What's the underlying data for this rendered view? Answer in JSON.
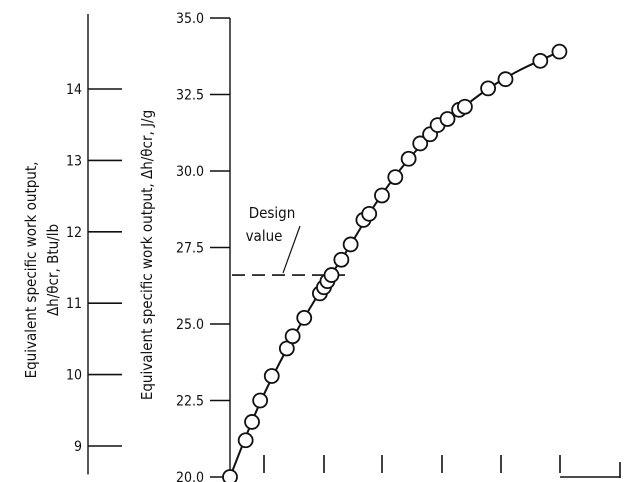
{
  "chart_data": {
    "type": "scatter",
    "x_axis": {
      "label": "",
      "tick_labels": [
        "",
        "",
        "",
        "",
        "",
        ""
      ]
    },
    "y_axis_si": {
      "label": "Equivalent specific work output, Δh/θcr, J/g",
      "ylim": [
        20.0,
        35.0
      ],
      "ticks": [
        20.0,
        22.5,
        25.0,
        27.5,
        30.0,
        32.5,
        35.0
      ],
      "tick_labels": [
        "20.0",
        "22.5",
        "25.0",
        "27.5",
        "30.0",
        "32.5",
        "35.0"
      ]
    },
    "y_axis_english": {
      "label_line1": "Equivalent specific work output,",
      "label_line2": "Δh/θcr,  Btu/lb",
      "ylim": [
        8.6,
        15.05
      ],
      "ticks": [
        9,
        10,
        11,
        12,
        13,
        14
      ],
      "tick_labels": [
        "9",
        "10",
        "11",
        "12",
        "13",
        "14"
      ]
    },
    "design_value": {
      "label_line1": "Design",
      "label_line2": "value",
      "y": 26.6
    },
    "series": [
      {
        "points": [
          {
            "x": 0.0,
            "y": 20.0
          },
          {
            "x": 0.27,
            "y": 21.2
          },
          {
            "x": 0.38,
            "y": 21.8
          },
          {
            "x": 0.52,
            "y": 22.5
          },
          {
            "x": 0.72,
            "y": 23.3
          },
          {
            "x": 0.98,
            "y": 24.2
          },
          {
            "x": 1.08,
            "y": 24.6
          },
          {
            "x": 1.28,
            "y": 25.2
          },
          {
            "x": 1.55,
            "y": 26.0
          },
          {
            "x": 1.62,
            "y": 26.2
          },
          {
            "x": 1.68,
            "y": 26.4
          },
          {
            "x": 1.75,
            "y": 26.6
          },
          {
            "x": 1.92,
            "y": 27.1
          },
          {
            "x": 2.08,
            "y": 27.6
          },
          {
            "x": 2.3,
            "y": 28.4
          },
          {
            "x": 2.4,
            "y": 28.6
          },
          {
            "x": 2.62,
            "y": 29.2
          },
          {
            "x": 2.85,
            "y": 29.8
          },
          {
            "x": 3.08,
            "y": 30.4
          },
          {
            "x": 3.28,
            "y": 30.9
          },
          {
            "x": 3.45,
            "y": 31.2
          },
          {
            "x": 3.58,
            "y": 31.5
          },
          {
            "x": 3.75,
            "y": 31.7
          },
          {
            "x": 3.95,
            "y": 32.0
          },
          {
            "x": 4.05,
            "y": 32.1
          },
          {
            "x": 4.45,
            "y": 32.7
          },
          {
            "x": 4.75,
            "y": 33.0
          },
          {
            "x": 5.35,
            "y": 33.6
          },
          {
            "x": 5.68,
            "y": 33.9
          }
        ],
        "curve": [
          {
            "x": 0.0,
            "y": 20.0
          },
          {
            "x": 0.5,
            "y": 22.35
          },
          {
            "x": 1.0,
            "y": 24.25
          },
          {
            "x": 1.5,
            "y": 25.9
          },
          {
            "x": 2.0,
            "y": 27.35
          },
          {
            "x": 2.5,
            "y": 28.9
          },
          {
            "x": 3.0,
            "y": 30.2
          },
          {
            "x": 3.5,
            "y": 31.25
          },
          {
            "x": 4.0,
            "y": 32.05
          },
          {
            "x": 4.5,
            "y": 32.75
          },
          {
            "x": 5.0,
            "y": 33.3
          },
          {
            "x": 5.68,
            "y": 33.9
          }
        ]
      }
    ],
    "grid": false
  }
}
